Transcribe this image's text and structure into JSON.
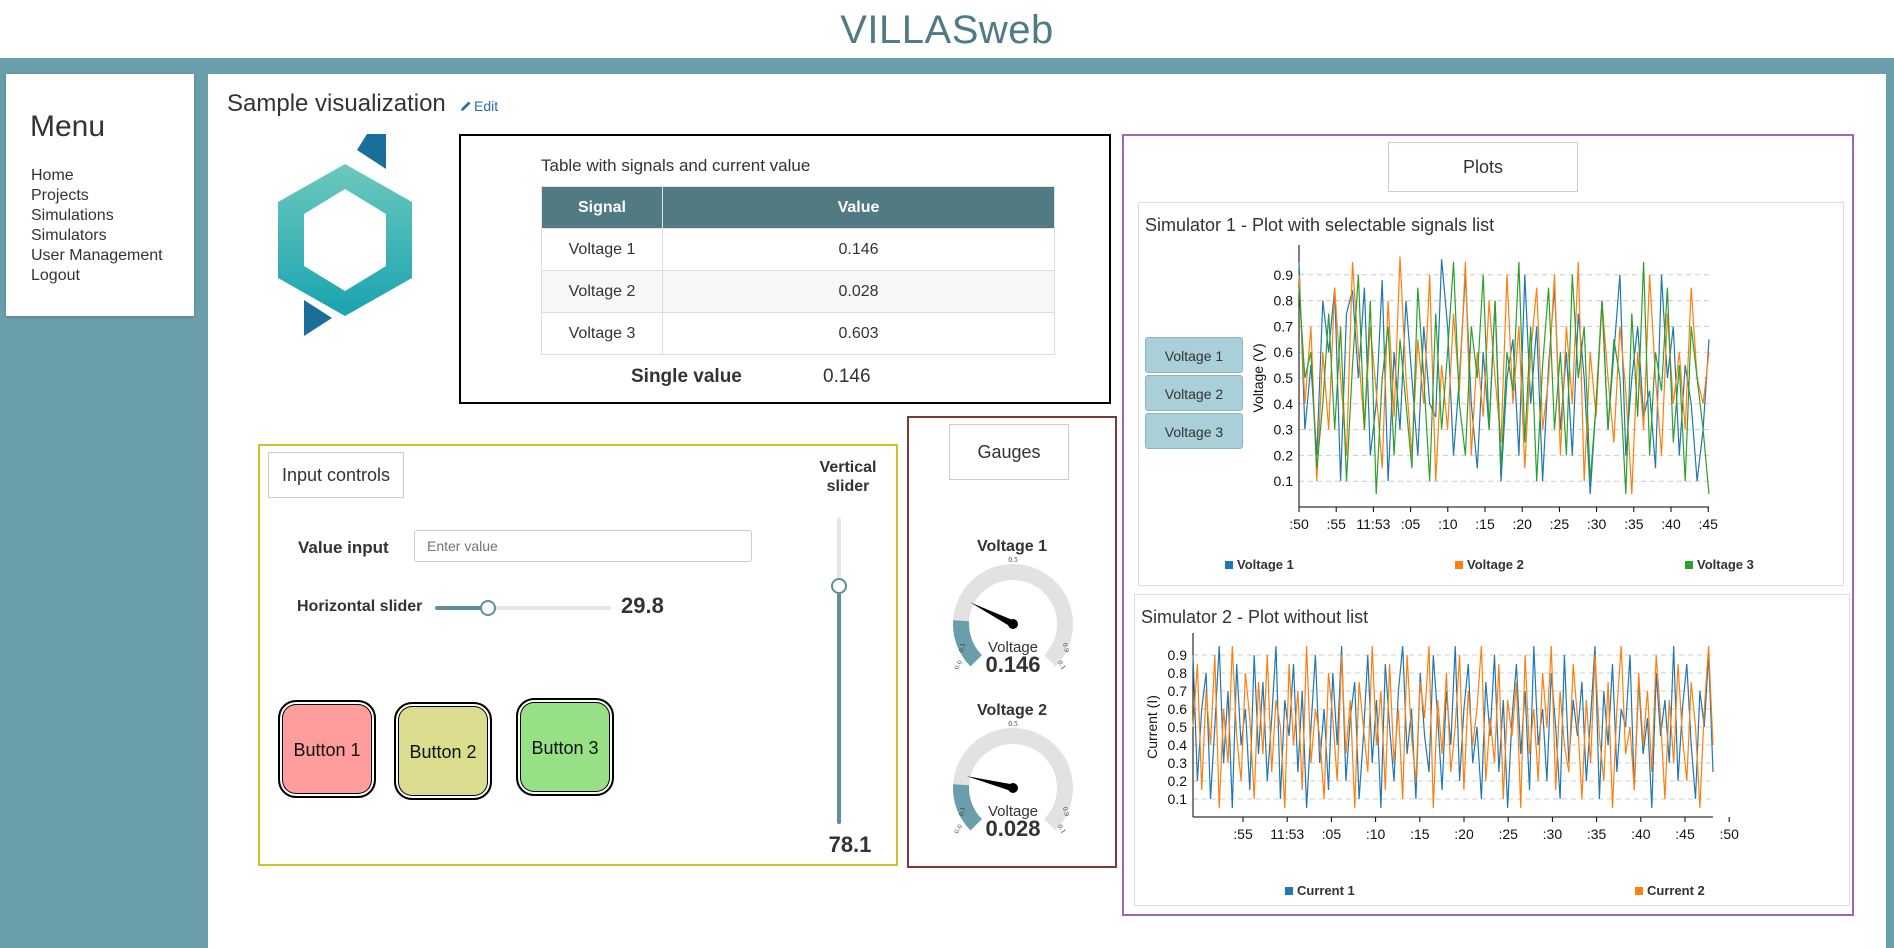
{
  "app": {
    "title": "VILLASweb"
  },
  "menu": {
    "heading": "Menu",
    "items": [
      "Home",
      "Projects",
      "Simulations",
      "Simulators",
      "User Management",
      "Logout"
    ]
  },
  "page": {
    "title": "Sample visualization",
    "edit_label": "Edit"
  },
  "table_widget": {
    "caption": "Table with signals and current value",
    "headers": [
      "Signal",
      "Value"
    ],
    "rows": [
      [
        "Voltage 1",
        "0.146"
      ],
      [
        "Voltage 2",
        "0.028"
      ],
      [
        "Voltage 3",
        "0.603"
      ]
    ],
    "single_value_label": "Single value",
    "single_value": "0.146"
  },
  "input_controls": {
    "title": "Input controls",
    "value_input_label": "Value input",
    "value_input_placeholder": "Enter value",
    "horizontal_slider_label": "Horizontal slider",
    "horizontal_slider_value": "29.8",
    "horizontal_slider_fraction": 0.298,
    "vertical_slider_label": "Vertical slider",
    "vertical_slider_value": "78.1",
    "vertical_slider_fraction": 0.781,
    "buttons": [
      {
        "label": "Button 1",
        "color": "#ff9c9c"
      },
      {
        "label": "Button 2",
        "color": "#dcdc8f"
      },
      {
        "label": "Button 3",
        "color": "#98e086"
      }
    ]
  },
  "gauges": {
    "title": "Gauges",
    "items": [
      {
        "title": "Voltage 1",
        "unit_label": "Voltage",
        "value": "0.146",
        "numeric": 0.146,
        "tick_labels": [
          "0.0",
          "0.1",
          "0.5",
          "0.9",
          "0.1"
        ]
      },
      {
        "title": "Voltage 2",
        "unit_label": "Voltage",
        "value": "0.028",
        "numeric": 0.028,
        "tick_labels": [
          "0.0",
          "0.1",
          "0.5",
          "0.9",
          "0.1"
        ]
      }
    ],
    "range": [
      0,
      1
    ],
    "fill_color": "#6a9eab"
  },
  "plots": {
    "title": "Plots",
    "colors": {
      "blue": "#1f77b4",
      "orange": "#ff7f0e",
      "green": "#2ca02c"
    },
    "plot1": {
      "title": "Simulator 1 - Plot with selectable signals list",
      "signal_list": [
        "Voltage 1",
        "Voltage 2",
        "Voltage 3"
      ]
    },
    "plot2": {
      "title": "Simulator 2 - Plot without list"
    }
  },
  "chart_data": [
    {
      "type": "line",
      "title": "Simulator 1 - Plot with selectable signals list",
      "ylabel": "Voltage (V)",
      "xlabel": "",
      "x_tick_labels": [
        ":50",
        ":55",
        "11:53",
        ":05",
        ":10",
        ":15",
        ":20",
        ":25",
        ":30",
        ":35",
        ":40",
        ":45"
      ],
      "y_ticks": [
        0.1,
        0.2,
        0.3,
        0.4,
        0.5,
        0.6,
        0.7,
        0.8,
        0.9
      ],
      "ylim": [
        0,
        1
      ],
      "grid": true,
      "legend_position": "bottom",
      "series": [
        {
          "name": "Voltage 1",
          "color": "#1f77b4",
          "values": [
            0.95,
            0.3,
            0.55,
            0.2,
            0.8,
            0.6,
            0.85,
            0.1,
            0.75,
            0.84,
            0.5,
            0.85,
            0.2,
            0.4,
            0.88,
            0.1,
            0.6,
            0.3,
            0.8,
            0.5,
            0.2,
            0.7,
            0.4,
            0.35,
            0.96,
            0.7,
            0.2,
            0.5,
            0.9,
            0.4,
            0.15,
            0.6,
            0.3,
            0.8,
            0.1,
            0.5,
            0.65,
            0.2,
            0.9,
            0.4,
            0.7,
            0.1,
            0.55,
            0.85,
            0.3,
            0.6,
            0.2,
            0.75,
            0.5,
            0.05,
            0.4,
            0.8,
            0.3,
            0.6,
            0.9,
            0.2,
            0.5,
            0.7,
            0.35,
            0.45,
            0.15,
            0.9,
            0.5,
            0.7,
            0.2,
            0.55,
            0.4,
            0.1,
            0.3,
            0.65
          ]
        },
        {
          "name": "Voltage 2",
          "color": "#ff7f0e",
          "values": [
            0.9,
            0.4,
            0.7,
            0.1,
            0.6,
            0.3,
            0.85,
            0.5,
            0.2,
            0.95,
            0.6,
            0.3,
            0.7,
            0.45,
            0.15,
            0.8,
            0.35,
            0.97,
            0.5,
            0.2,
            0.65,
            0.4,
            0.9,
            0.1,
            0.55,
            0.3,
            0.75,
            0.45,
            0.95,
            0.2,
            0.6,
            0.35,
            0.8,
            0.5,
            0.25,
            0.9,
            0.4,
            0.7,
            0.15,
            0.6,
            0.85,
            0.3,
            0.5,
            0.9,
            0.2,
            0.7,
            0.4,
            0.95,
            0.1,
            0.6,
            0.35,
            0.8,
            0.5,
            0.25,
            0.7,
            0.45,
            0.05,
            0.6,
            0.3,
            0.9,
            0.5,
            0.2,
            0.75,
            0.4,
            0.6,
            0.3,
            0.85,
            0.5,
            0.4,
            0.6
          ]
        },
        {
          "name": "Voltage 3",
          "color": "#2ca02c",
          "values": [
            0.85,
            0.5,
            0.6,
            0.15,
            0.4,
            0.75,
            0.3,
            0.7,
            0.1,
            0.55,
            0.9,
            0.3,
            0.8,
            0.05,
            0.5,
            0.7,
            0.2,
            0.65,
            0.4,
            0.15,
            0.85,
            0.5,
            0.1,
            0.75,
            0.3,
            0.6,
            0.95,
            0.4,
            0.2,
            0.7,
            0.5,
            0.9,
            0.3,
            0.8,
            0.15,
            0.6,
            0.45,
            0.95,
            0.25,
            0.7,
            0.1,
            0.55,
            0.85,
            0.3,
            0.6,
            0.2,
            0.9,
            0.5,
            0.7,
            0.1,
            0.4,
            0.8,
            0.3,
            0.65,
            0.5,
            0.05,
            0.75,
            0.35,
            0.95,
            0.2,
            0.6,
            0.45,
            0.85,
            0.25,
            0.55,
            0.1,
            0.7,
            0.5,
            0.3,
            0.05
          ]
        }
      ]
    },
    {
      "type": "line",
      "title": "Simulator 2 - Plot without list",
      "ylabel": "Current (I)",
      "xlabel": "",
      "x_tick_labels": [
        ":55",
        "11:53",
        ":05",
        ":10",
        ":15",
        ":20",
        ":25",
        ":30",
        ":35",
        ":40",
        ":45",
        ":50"
      ],
      "y_ticks": [
        0.1,
        0.2,
        0.3,
        0.4,
        0.5,
        0.6,
        0.7,
        0.8,
        0.9
      ],
      "ylim": [
        0,
        1
      ],
      "grid": true,
      "legend_position": "bottom",
      "series": [
        {
          "name": "Current 1",
          "color": "#1f77b4",
          "values": [
            0.9,
            0.2,
            0.6,
            0.8,
            0.1,
            0.5,
            0.95,
            0.3,
            0.7,
            0.05,
            0.85,
            0.4,
            0.6,
            0.15,
            0.9,
            0.35,
            0.75,
            0.2,
            0.55,
            0.95,
            0.1,
            0.65,
            0.45,
            0.85,
            0.25,
            0.7,
            0.05,
            0.5,
            0.9,
            0.3,
            0.6,
            0.15,
            0.8,
            0.4,
            0.95,
            0.2,
            0.55,
            0.75,
            0.1,
            0.45,
            0.9,
            0.3,
            0.65,
            0.05,
            0.85,
            0.5,
            0.2,
            0.7,
            0.95,
            0.35,
            0.6,
            0.1,
            0.8,
            0.45,
            0.25,
            0.9,
            0.55,
            0.15,
            0.7,
            0.4,
            0.95,
            0.2,
            0.6,
            0.85,
            0.3,
            0.5,
            0.1,
            0.75,
            0.45,
            0.9,
            0.25,
            0.65,
            0.05,
            0.55,
            0.85,
            0.35,
            0.7,
            0.15,
            0.95,
            0.4,
            0.6,
            0.2,
            0.8,
            0.5,
            0.1,
            0.9,
            0.3,
            0.65,
            0.45,
            0.75,
            0.2,
            0.55,
            0.95,
            0.1,
            0.7,
            0.4,
            0.85,
            0.25,
            0.6,
            0.5,
            0.9,
            0.15,
            0.75,
            0.35,
            0.55,
            0.05,
            0.8,
            0.45,
            0.65,
            0.3,
            0.95,
            0.2,
            0.6,
            0.85,
            0.4,
            0.1,
            0.7,
            0.5,
            0.9,
            0.25
          ]
        },
        {
          "name": "Current 2",
          "color": "#ff7f0e",
          "values": [
            0.5,
            0.85,
            0.15,
            0.7,
            0.4,
            0.9,
            0.05,
            0.6,
            0.3,
            0.95,
            0.45,
            0.2,
            0.8,
            0.55,
            0.1,
            0.75,
            0.35,
            0.9,
            0.25,
            0.65,
            0.5,
            0.05,
            0.85,
            0.4,
            0.7,
            0.15,
            0.95,
            0.3,
            0.6,
            0.45,
            0.1,
            0.8,
            0.55,
            0.2,
            0.9,
            0.35,
            0.65,
            0.05,
            0.75,
            0.5,
            0.25,
            0.95,
            0.4,
            0.7,
            0.15,
            0.85,
            0.3,
            0.6,
            0.1,
            0.9,
            0.45,
            0.2,
            0.75,
            0.55,
            0.95,
            0.05,
            0.65,
            0.35,
            0.8,
            0.25,
            0.5,
            0.9,
            0.15,
            0.7,
            0.4,
            0.6,
            0.95,
            0.2,
            0.55,
            0.3,
            0.85,
            0.1,
            0.65,
            0.45,
            0.75,
            0.05,
            0.9,
            0.35,
            0.6,
            0.2,
            0.8,
            0.5,
            0.95,
            0.15,
            0.7,
            0.4,
            0.25,
            0.85,
            0.55,
            0.1,
            0.65,
            0.3,
            0.9,
            0.45,
            0.2,
            0.75,
            0.05,
            0.6,
            0.95,
            0.35,
            0.5,
            0.15,
            0.8,
            0.4,
            0.7,
            0.25,
            0.9,
            0.55,
            0.1,
            0.65,
            0.3,
            0.85,
            0.45,
            0.2,
            0.75,
            0.5,
            0.05,
            0.6,
            0.95,
            0.4
          ]
        }
      ]
    }
  ]
}
